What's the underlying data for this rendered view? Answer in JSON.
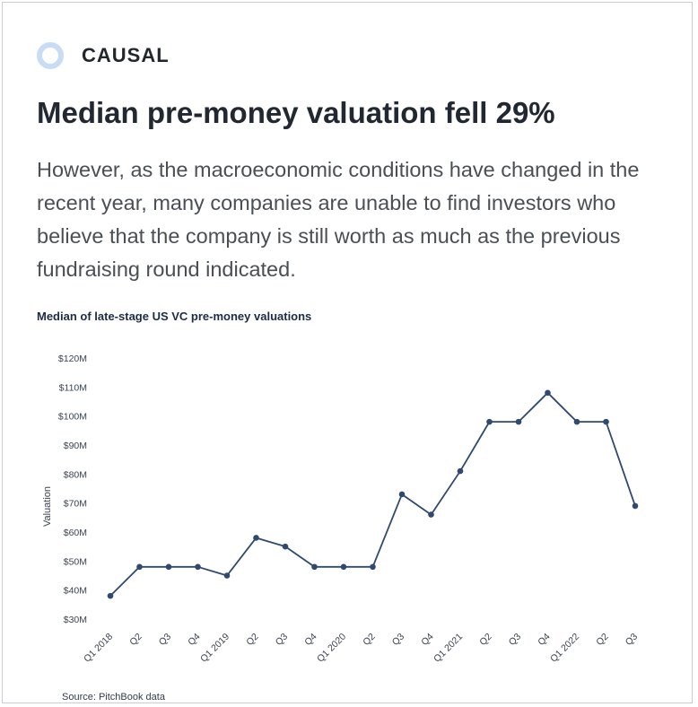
{
  "brand": {
    "name": "CAUSAL",
    "logo_color": "#c8dcf6"
  },
  "headline": "Median pre-money valuation fell 29%",
  "body_text": "However, as the macroeconomic conditions have changed in the recent year, many companies are unable to find investors who believe that the company is still worth as much as the previous fundraising round indicated.",
  "source": "Source: PitchBook data",
  "chart_data": {
    "type": "line",
    "title": "Median of late-stage US VC pre-money valuations",
    "xlabel": "",
    "ylabel": "Valuation",
    "line_color": "#2f4a6e",
    "grid": false,
    "ylim": [
      30,
      120
    ],
    "yticks": [
      {
        "value": 120,
        "label": "$120M"
      },
      {
        "value": 110,
        "label": "$110M"
      },
      {
        "value": 100,
        "label": "$100M"
      },
      {
        "value": 90,
        "label": "$90M"
      },
      {
        "value": 80,
        "label": "$80M"
      },
      {
        "value": 70,
        "label": "$70M"
      },
      {
        "value": 60,
        "label": "$60M"
      },
      {
        "value": 50,
        "label": "$50M"
      },
      {
        "value": 40,
        "label": "$40M"
      },
      {
        "value": 30,
        "label": "$30M"
      }
    ],
    "categories": [
      "Q1 2018",
      "Q2",
      "Q3",
      "Q4",
      "Q1 2019",
      "Q2",
      "Q3",
      "Q4",
      "Q1 2020",
      "Q2",
      "Q3",
      "Q4",
      "Q1 2021",
      "Q2",
      "Q3",
      "Q4",
      "Q1 2022",
      "Q2",
      "Q3"
    ],
    "values": [
      38,
      48,
      48,
      48,
      45,
      58,
      55,
      48,
      48,
      48,
      73,
      66,
      81,
      98,
      98,
      108,
      98,
      98,
      69
    ]
  }
}
